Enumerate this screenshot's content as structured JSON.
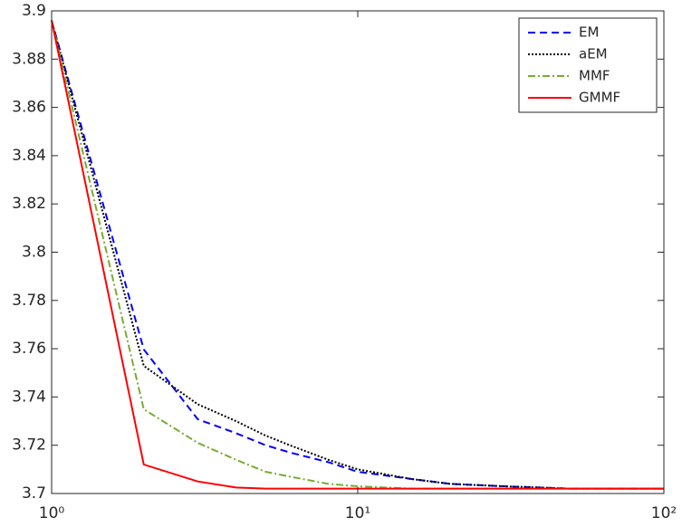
{
  "chart_data": {
    "type": "line",
    "x": [
      1,
      2,
      3,
      4,
      5,
      6,
      8,
      10,
      15,
      20,
      30,
      50,
      100
    ],
    "xlim": [
      1,
      100
    ],
    "xscale": "log",
    "xticks": [
      {
        "value": 1,
        "label": "10⁰"
      },
      {
        "value": 10,
        "label": "10¹"
      },
      {
        "value": 100,
        "label": "10²"
      }
    ],
    "ylim": [
      3.7,
      3.9
    ],
    "yticks": [
      3.7,
      3.72,
      3.74,
      3.76,
      3.78,
      3.8,
      3.82,
      3.84,
      3.86,
      3.88,
      3.9
    ],
    "grid": false,
    "legend": "upper right",
    "series": [
      {
        "name": "EM",
        "color": "#0000ff",
        "dash": "8,5",
        "values": [
          3.896,
          3.7597,
          3.7308,
          3.725,
          3.72,
          3.717,
          3.713,
          3.709,
          3.706,
          3.704,
          3.703,
          3.702,
          3.702
        ]
      },
      {
        "name": "aEM",
        "color": "#000000",
        "dash": "2,2",
        "values": [
          3.896,
          3.7529,
          3.737,
          3.73,
          3.724,
          3.72,
          3.714,
          3.71,
          3.706,
          3.704,
          3.703,
          3.702,
          3.702
        ]
      },
      {
        "name": "MMF",
        "color": "#77ac30",
        "dash": "8,3,2,3",
        "values": [
          3.896,
          3.7349,
          3.721,
          3.714,
          3.709,
          3.707,
          3.704,
          3.703,
          3.702,
          3.702,
          3.702,
          3.702,
          3.702
        ]
      },
      {
        "name": "GMMF",
        "color": "#ff0000",
        "dash": "none",
        "values": [
          3.896,
          3.712,
          3.705,
          3.7025,
          3.702,
          3.702,
          3.702,
          3.702,
          3.702,
          3.702,
          3.702,
          3.702,
          3.702
        ]
      }
    ]
  }
}
